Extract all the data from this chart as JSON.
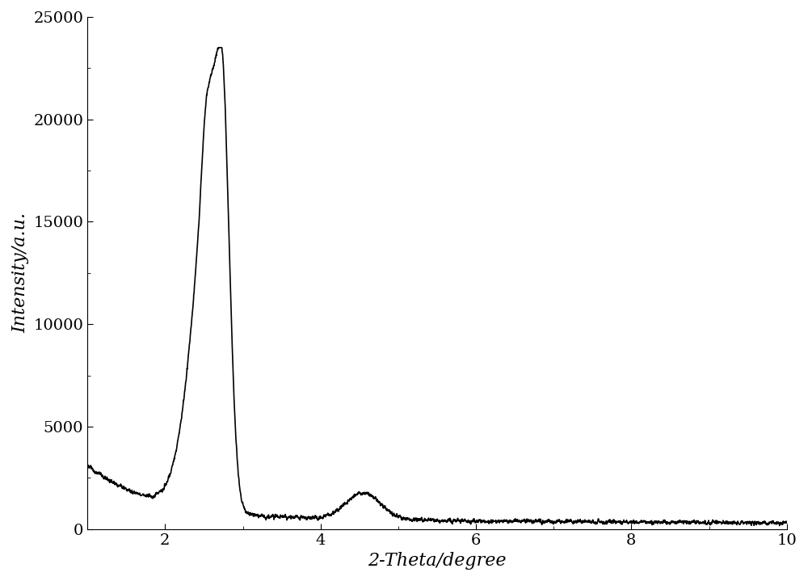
{
  "xlabel": "2-Theta/degree",
  "ylabel": "Intensity/a.u.",
  "xlim": [
    1.0,
    10.0
  ],
  "ylim": [
    0,
    25000
  ],
  "xticks": [
    2,
    4,
    6,
    8,
    10
  ],
  "yticks": [
    0,
    5000,
    10000,
    15000,
    20000,
    25000
  ],
  "line_color": "#000000",
  "line_width": 1.2,
  "background_color": "#ffffff",
  "xlabel_fontsize": 16,
  "ylabel_fontsize": 16,
  "tick_fontsize": 14
}
